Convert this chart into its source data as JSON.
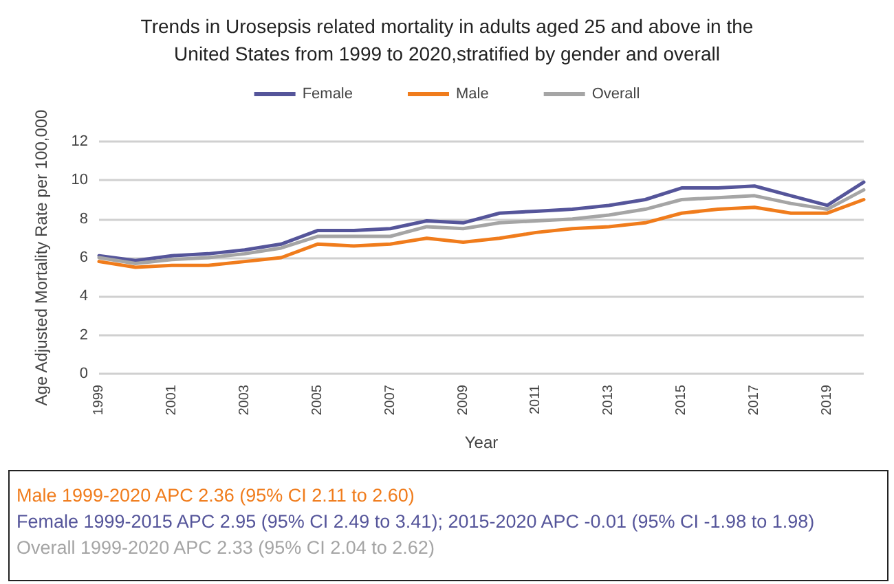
{
  "chart_data": {
    "type": "line",
    "title": "Trends in Urosepsis related mortality in adults aged 25 and above in the\nUnited States from 1999 to 2020,stratified by gender and overall",
    "xlabel": "Year",
    "ylabel": "Age Adjusted Mortality Rate per 100,000",
    "categories": [
      "1999",
      null,
      "2001",
      null,
      "2003",
      null,
      "2005",
      null,
      "2007",
      null,
      "2009",
      null,
      "2011",
      null,
      "2013",
      null,
      "2015",
      null,
      "2017",
      null,
      "2019",
      null
    ],
    "series": [
      {
        "name": "Female",
        "color": "#55559a",
        "values": [
          6.1,
          5.85,
          6.1,
          6.2,
          6.4,
          6.7,
          7.4,
          7.4,
          7.5,
          7.9,
          7.8,
          8.3,
          8.4,
          8.5,
          8.7,
          9.0,
          9.6,
          9.6,
          9.7,
          9.2,
          8.7,
          9.9
        ]
      },
      {
        "name": "Male",
        "color": "#f07c1c",
        "values": [
          5.8,
          5.5,
          5.6,
          5.6,
          5.8,
          6.0,
          6.7,
          6.6,
          6.7,
          7.0,
          6.8,
          7.0,
          7.3,
          7.5,
          7.6,
          7.8,
          8.3,
          8.5,
          8.6,
          8.3,
          8.3,
          9.0
        ]
      },
      {
        "name": "Overall",
        "color": "#a5a5a5",
        "values": [
          6.0,
          5.7,
          5.9,
          6.0,
          6.2,
          6.5,
          7.1,
          7.1,
          7.1,
          7.6,
          7.5,
          7.8,
          7.9,
          8.0,
          8.2,
          8.5,
          9.0,
          9.1,
          9.2,
          8.8,
          8.5,
          9.5
        ]
      }
    ],
    "ylim": [
      0,
      12
    ],
    "yticks": [
      0,
      2,
      4,
      6,
      8,
      10,
      12
    ],
    "grid": "y",
    "legend": "top",
    "marker": "none",
    "line_style": "solid",
    "annotations": [
      "Male 1999-2020 APC 2.36 (95% CI 2.11 to 2.60)",
      "Female 1999-2015 APC 2.95 (95% CI 2.49 to 3.41); 2015-2020 APC -0.01 (95% CI -1.98 to 1.98)",
      "Overall 1999-2020 APC 2.33 (95% CI 2.04 to 2.62)"
    ]
  }
}
